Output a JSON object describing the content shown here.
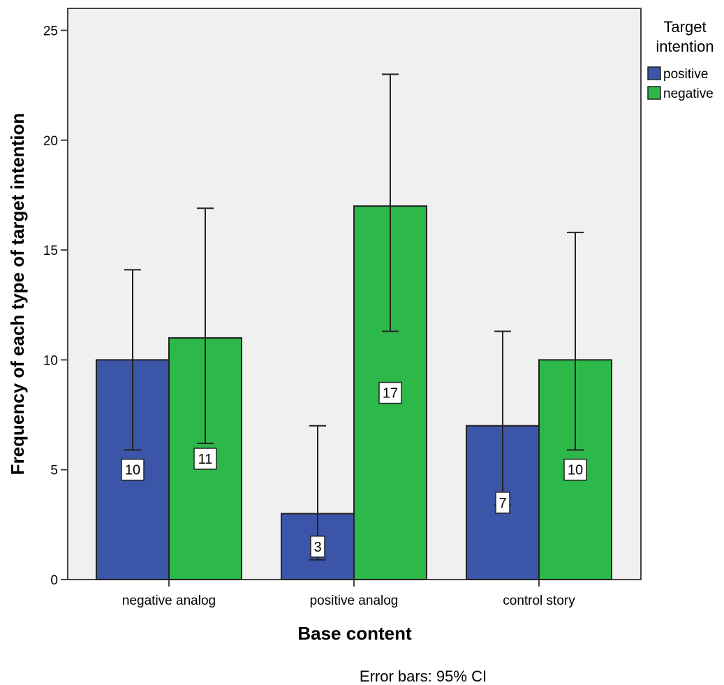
{
  "chart_data": {
    "type": "bar",
    "xlabel": "Base content",
    "ylabel": "Frequency of each type of target intention",
    "ylim": [
      0,
      26
    ],
    "yticks": [
      0,
      5,
      10,
      15,
      20,
      25
    ],
    "categories": [
      "negative analog",
      "positive analog",
      "control story"
    ],
    "series": [
      {
        "name": "positive",
        "values": [
          10,
          3,
          7
        ],
        "ci_low": [
          5.9,
          0.9,
          3.4
        ],
        "ci_high": [
          14.1,
          7.0,
          11.3
        ],
        "color": "#3b55a8"
      },
      {
        "name": "negative",
        "values": [
          11,
          17,
          10
        ],
        "ci_low": [
          6.2,
          11.3,
          5.9
        ],
        "ci_high": [
          16.9,
          23.0,
          15.8
        ],
        "color": "#2db84a"
      }
    ],
    "legend": {
      "title_lines": [
        "Target",
        "intention"
      ],
      "placement": "right"
    },
    "footnote": "Error bars: 95% CI",
    "plot_background": "#f0f0f0",
    "grid": false
  }
}
